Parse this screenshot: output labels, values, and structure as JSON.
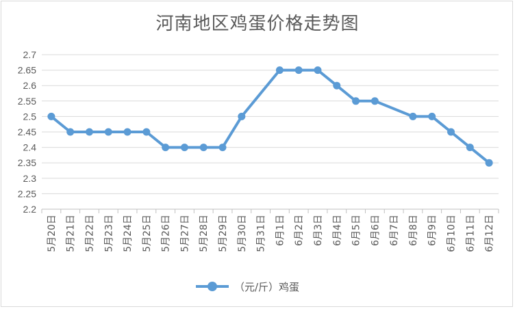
{
  "chart_data": {
    "type": "line",
    "title": "河南地区鸡蛋价格走势图",
    "categories": [
      "5月20日",
      "5月21日",
      "5月22日",
      "5月23日",
      "5月24日",
      "5月25日",
      "5月26日",
      "5月27日",
      "5月28日",
      "5月29日",
      "5月30日",
      "5月31日",
      "6月1日",
      "6月2日",
      "6月3日",
      "6月4日",
      "6月5日",
      "6月6日",
      "6月7日",
      "6月8日",
      "6月9日",
      "6月10日",
      "6月11日",
      "6月12日"
    ],
    "series": [
      {
        "name": "（元/斤）鸡蛋",
        "color": "#5b9bd5",
        "values": [
          2.5,
          2.45,
          2.45,
          2.45,
          2.45,
          2.45,
          2.4,
          2.4,
          2.4,
          2.4,
          2.5,
          null,
          2.65,
          2.65,
          2.65,
          2.6,
          2.55,
          2.55,
          null,
          2.5,
          2.5,
          2.45,
          2.4,
          2.35
        ]
      }
    ],
    "ylim": [
      2.2,
      2.7
    ],
    "yticks": [
      "2.2",
      "2.25",
      "2.3",
      "2.35",
      "2.4",
      "2.45",
      "2.5",
      "2.55",
      "2.6",
      "2.65",
      "2.7"
    ],
    "grid": true,
    "legend_position": "bottom",
    "xlabel": "",
    "ylabel": ""
  }
}
